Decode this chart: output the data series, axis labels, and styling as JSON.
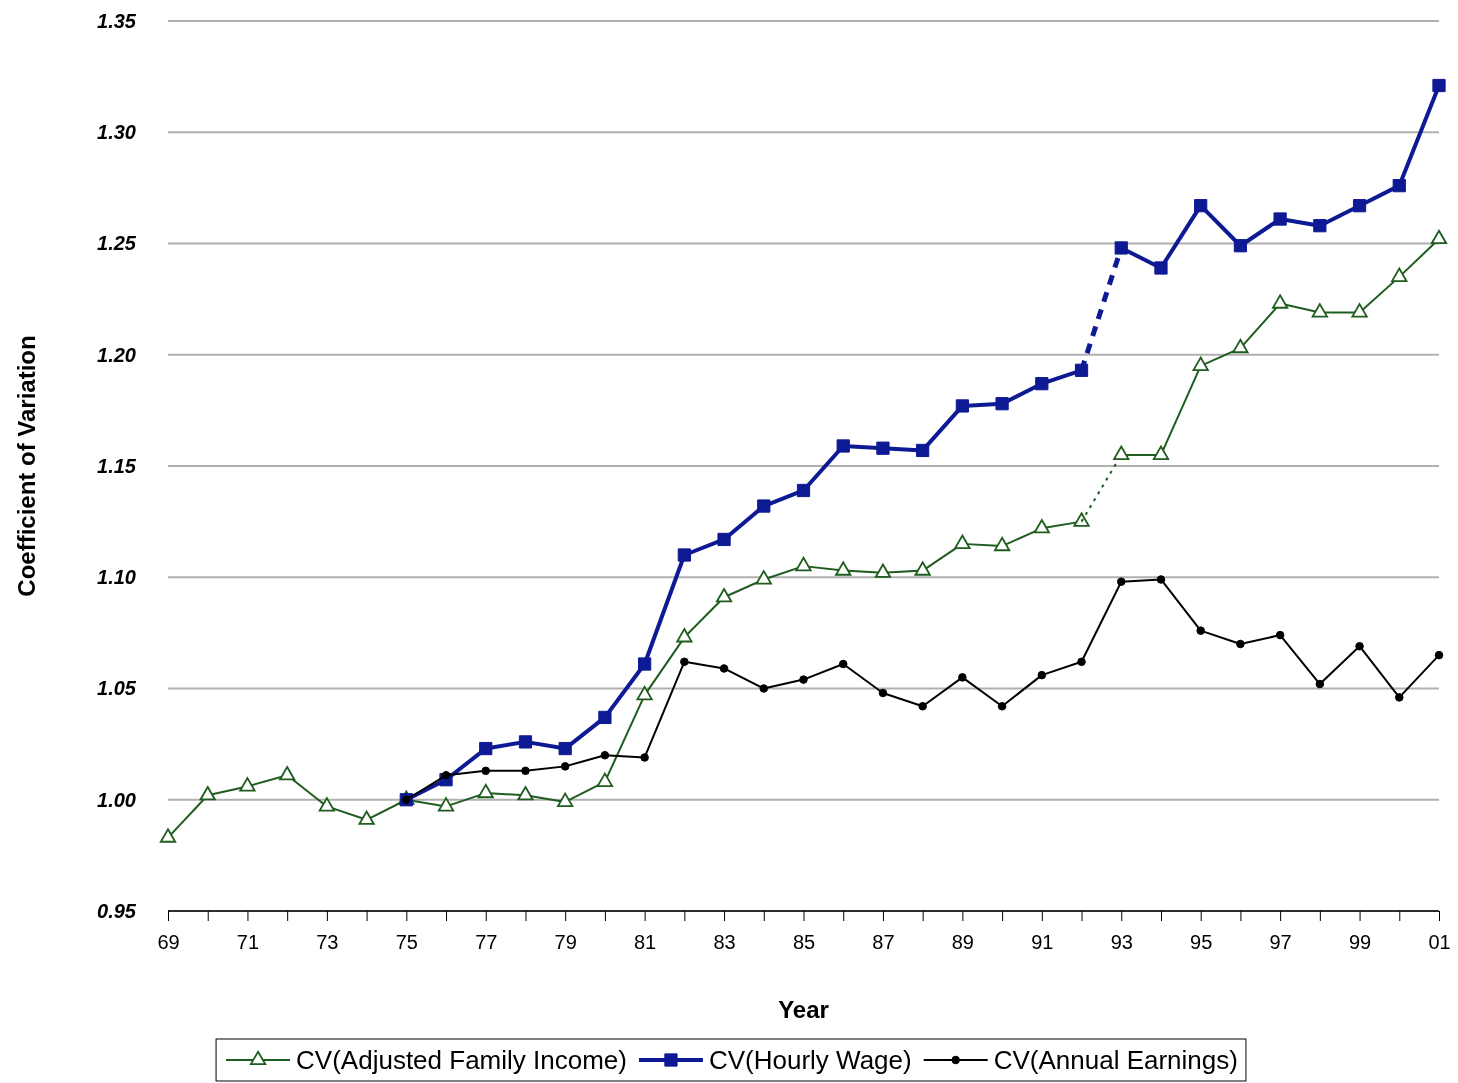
{
  "chart_data": {
    "type": "line",
    "xlabel": "Year",
    "ylabel": "Coefficient of Variation",
    "categories": [
      "69",
      null,
      "71",
      null,
      "73",
      null,
      "75",
      null,
      "77",
      null,
      "79",
      null,
      "81",
      null,
      "83",
      null,
      "85",
      null,
      "87",
      null,
      "89",
      null,
      "91",
      null,
      "93",
      null,
      "95",
      null,
      "97",
      null,
      "99",
      null,
      "01"
    ],
    "ylim": [
      0.95,
      1.35
    ],
    "yticks": [
      {
        "value": 0.95,
        "label": "0.95"
      },
      {
        "value": 1.0,
        "label": "1.00"
      },
      {
        "value": 1.05,
        "label": "1.05"
      },
      {
        "value": 1.1,
        "label": "1.10"
      },
      {
        "value": 1.15,
        "label": "1.15"
      },
      {
        "value": 1.2,
        "label": "1.20"
      },
      {
        "value": 1.25,
        "label": "1.25"
      },
      {
        "value": 1.3,
        "label": "1.30"
      },
      {
        "value": 1.35,
        "label": "1.35"
      }
    ],
    "grid": "y",
    "legend": "bottom",
    "series": [
      {
        "name": "CV(Adjusted Family Income)",
        "color": "#1f5c1f",
        "marker": "triangle",
        "line_style": "solid",
        "values": [
          0.983,
          1.002,
          1.006,
          1.011,
          0.997,
          0.991,
          1.0,
          0.997,
          1.003,
          1.002,
          0.999,
          1.008,
          1.047,
          1.073,
          1.091,
          1.099,
          1.105,
          1.103,
          1.102,
          1.103,
          1.115,
          1.114,
          1.122,
          1.125,
          null,
          null,
          null,
          null,
          null,
          null,
          null,
          null,
          null
        ]
      },
      {
        "color": "#1f5c1f",
        "marker": "none",
        "line_style": "dotted",
        "values": [
          null,
          null,
          null,
          null,
          null,
          null,
          null,
          null,
          null,
          null,
          null,
          null,
          null,
          null,
          null,
          null,
          null,
          null,
          null,
          null,
          null,
          null,
          null,
          1.125,
          1.155,
          null,
          null,
          null,
          null,
          null,
          null,
          null,
          null
        ]
      },
      {
        "color": "#1f5c1f",
        "marker": "triangle",
        "line_style": "solid",
        "values": [
          null,
          null,
          null,
          null,
          null,
          null,
          null,
          null,
          null,
          null,
          null,
          null,
          null,
          null,
          null,
          null,
          null,
          null,
          null,
          null,
          null,
          null,
          null,
          null,
          1.155,
          1.155,
          1.195,
          1.203,
          1.223,
          1.219,
          1.219,
          1.235,
          1.252
        ]
      },
      {
        "name": "CV(Hourly Wage)",
        "color": "#0d1a94",
        "marker": "square",
        "line_style": "solid",
        "values": [
          null,
          null,
          null,
          null,
          null,
          null,
          1.0,
          1.009,
          1.023,
          1.026,
          1.023,
          1.037,
          1.061,
          1.11,
          1.117,
          1.132,
          1.139,
          1.159,
          1.158,
          1.157,
          1.177,
          1.178,
          1.187,
          1.193,
          null,
          null,
          null,
          null,
          null,
          null,
          null,
          null,
          null
        ]
      },
      {
        "color": "#0d1a94",
        "marker": "none",
        "line_style": "dashed",
        "values": [
          null,
          null,
          null,
          null,
          null,
          null,
          null,
          null,
          null,
          null,
          null,
          null,
          null,
          null,
          null,
          null,
          null,
          null,
          null,
          null,
          null,
          null,
          null,
          1.193,
          1.248,
          null,
          null,
          null,
          null,
          null,
          null,
          null,
          null
        ]
      },
      {
        "color": "#0d1a94",
        "marker": "square",
        "line_style": "solid",
        "values": [
          null,
          null,
          null,
          null,
          null,
          null,
          null,
          null,
          null,
          null,
          null,
          null,
          null,
          null,
          null,
          null,
          null,
          null,
          null,
          null,
          null,
          null,
          null,
          null,
          1.248,
          1.239,
          1.267,
          1.249,
          1.261,
          1.258,
          1.267,
          1.276,
          1.321
        ]
      },
      {
        "name": "CV(Annual Earnings)",
        "color": "#000000",
        "marker": "circle",
        "line_style": "solid",
        "values": [
          null,
          null,
          null,
          null,
          null,
          null,
          1.0,
          1.011,
          1.013,
          1.013,
          1.015,
          1.02,
          1.019,
          1.062,
          1.059,
          1.05,
          1.054,
          1.061,
          1.048,
          1.042,
          1.055,
          1.042,
          1.056,
          1.062,
          1.098,
          1.099,
          1.076,
          1.07,
          1.074,
          1.052,
          1.069,
          1.046,
          1.065
        ]
      }
    ]
  }
}
